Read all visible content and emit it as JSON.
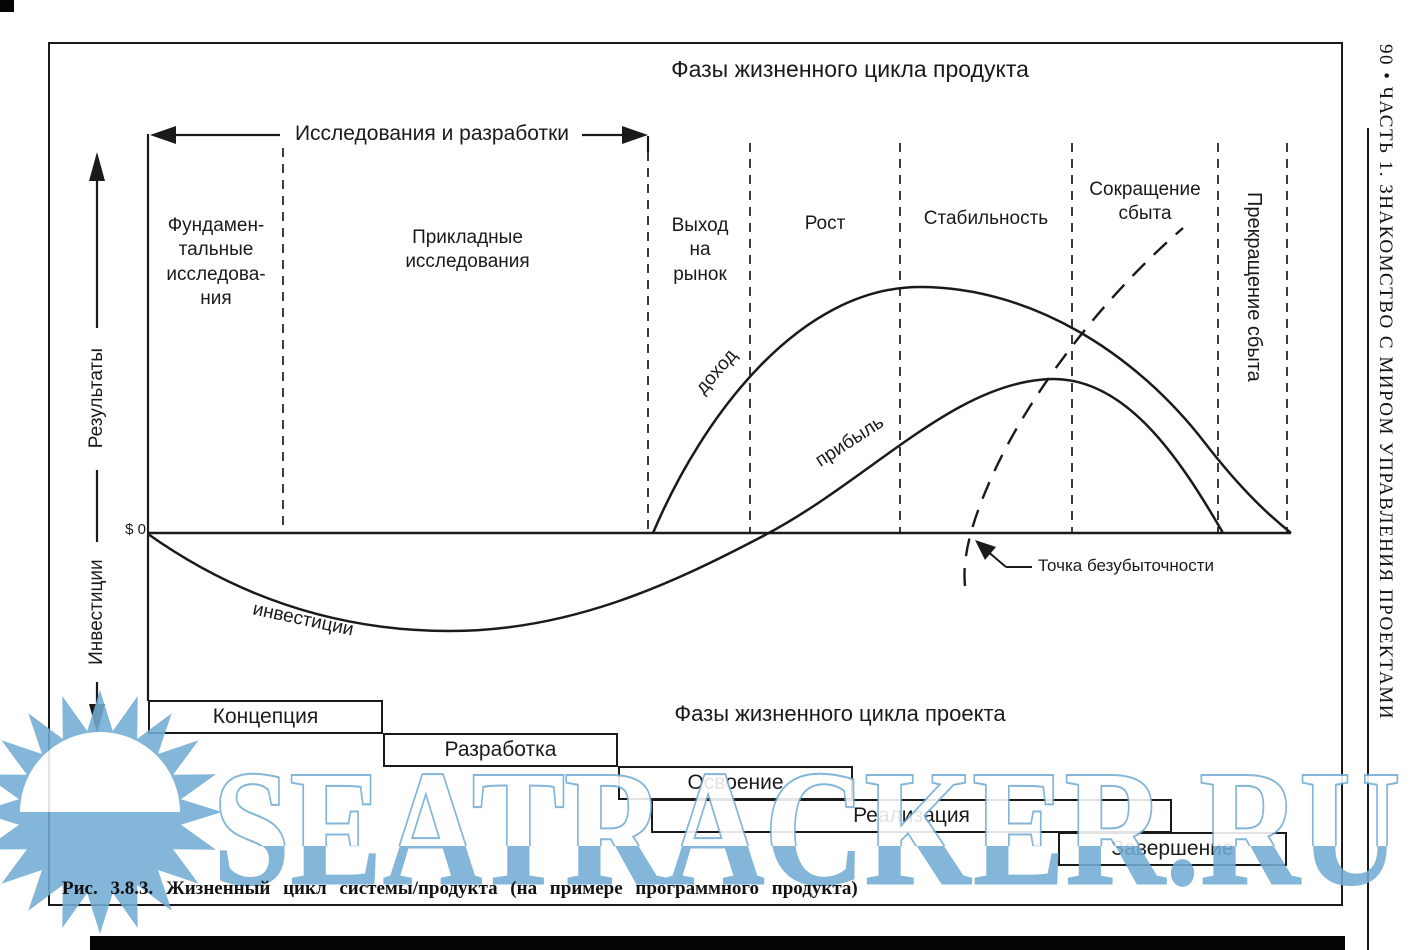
{
  "colors": {
    "ink": "#1a1a1a",
    "watermark_blue": "#72acd3"
  },
  "watermark": {
    "text": "SEATRACKER.RU",
    "logo": "sun-over-sea"
  },
  "sidebar": {
    "text": "90 • ЧАСТЬ 1. ЗНАКОМСТВО С МИРОМ УПРАВЛЕНИЯ ПРОЕКТАМИ"
  },
  "diagram": {
    "title": "Фазы жизненного цикла продукта",
    "rnd_bracket": "Исследования и разработки",
    "axis": {
      "results": "Результаты",
      "investments": "Инвестиции",
      "zero": "$ 0"
    },
    "phases": [
      "Фундамен-\nтальные\nисследова-\nния",
      "Прикладные\nисследования",
      "Выход\nна\nрынок",
      "Рост",
      "Стабильность",
      "Сокращение\nсбыта",
      "Прекращение сбыта"
    ],
    "curves": {
      "revenue": "доход",
      "profit": "прибыль",
      "investment": "инвестиции"
    },
    "breakeven": "Точка безубыточности"
  },
  "project": {
    "title": "Фазы жизненного цикла проекта",
    "phases": [
      "Концепция",
      "Разработка",
      "Освоение",
      "Реализация",
      "Завершение"
    ]
  },
  "caption": {
    "figure_label": "Рис. 3.8.3.",
    "text": "Жизненный цикл системы/продукта (на примере программного продукта)"
  }
}
